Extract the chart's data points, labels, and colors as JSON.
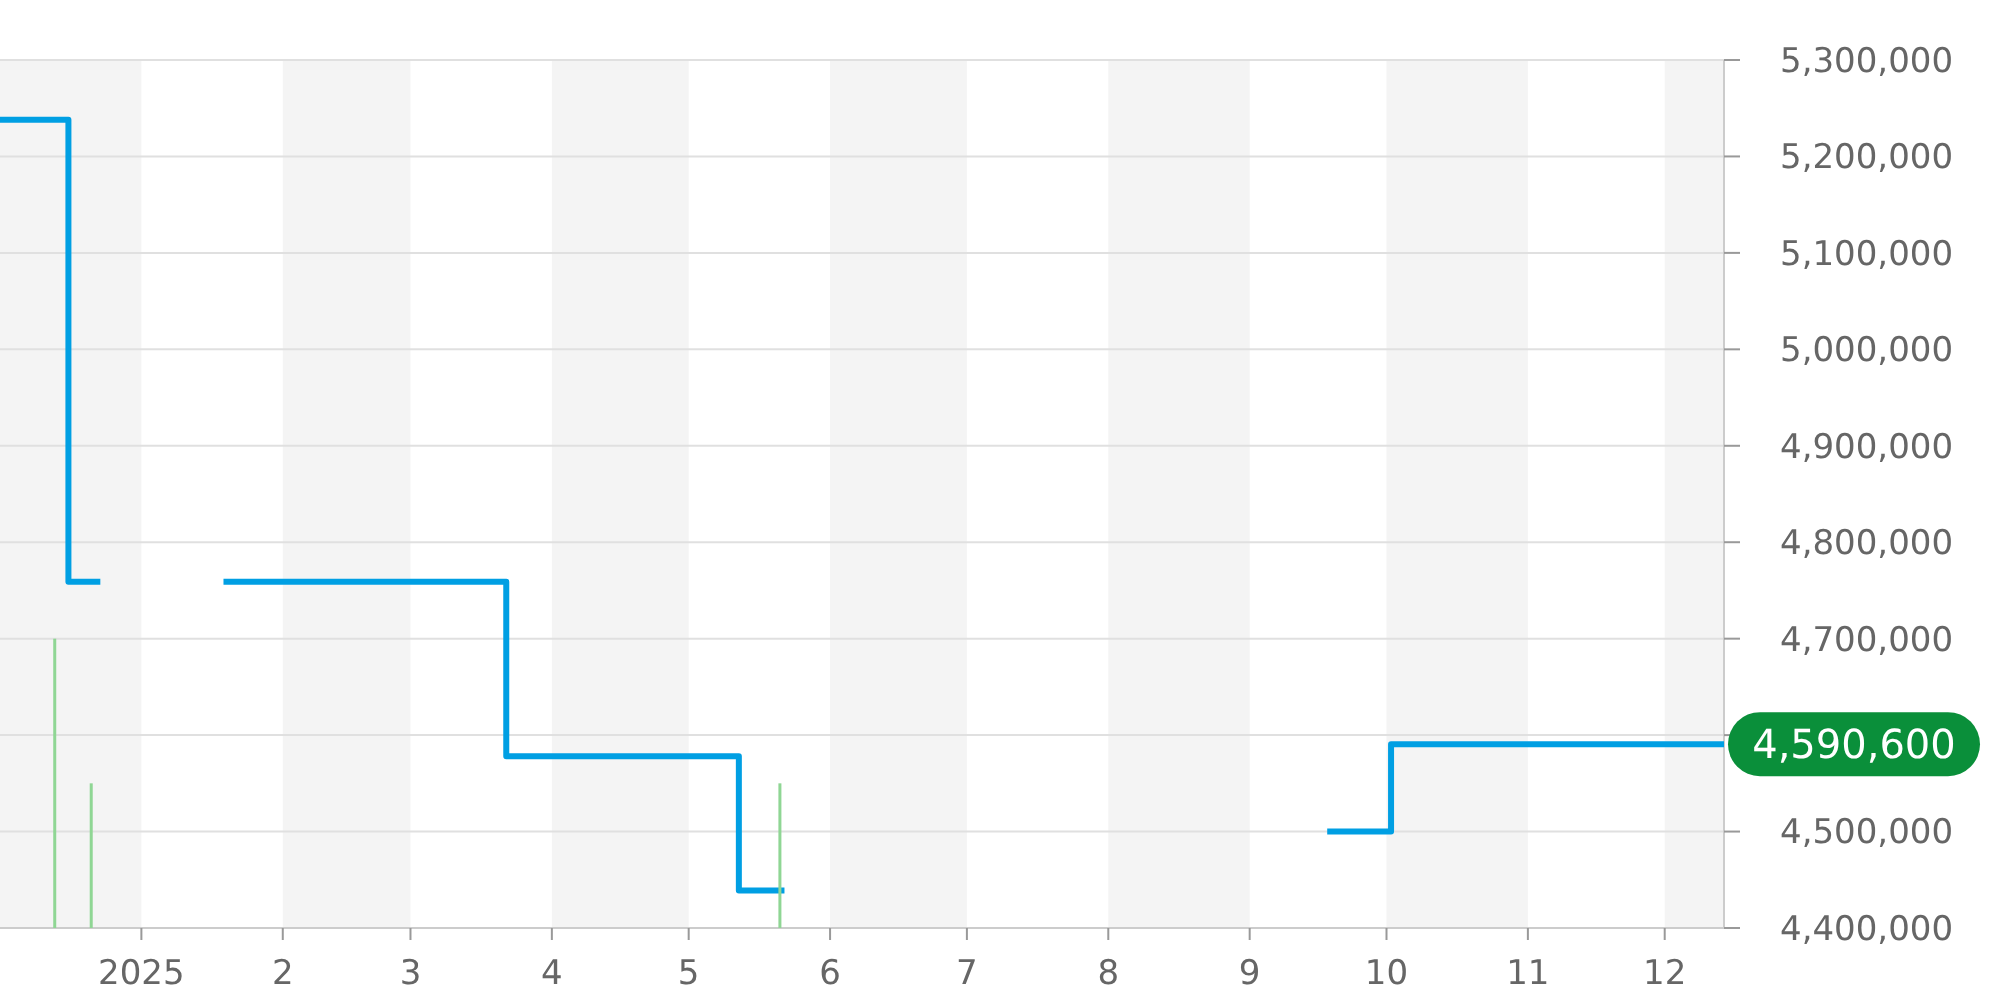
{
  "chart_data": {
    "type": "step",
    "xlim": [
      "2024-12-01",
      "2025-12-14"
    ],
    "xticks": [
      {
        "value": "2025-01-01",
        "label": "2025"
      },
      {
        "value": "2025-02-01",
        "label": "2"
      },
      {
        "value": "2025-03-01",
        "label": "3"
      },
      {
        "value": "2025-04-01",
        "label": "4"
      },
      {
        "value": "2025-05-01",
        "label": "5"
      },
      {
        "value": "2025-06-01",
        "label": "6"
      },
      {
        "value": "2025-07-01",
        "label": "7"
      },
      {
        "value": "2025-08-01",
        "label": "8"
      },
      {
        "value": "2025-09-01",
        "label": "9"
      },
      {
        "value": "2025-10-01",
        "label": "10"
      },
      {
        "value": "2025-11-01",
        "label": "11"
      },
      {
        "value": "2025-12-01",
        "label": "12"
      }
    ],
    "ylim": [
      4400000,
      5300000
    ],
    "yticks": [
      {
        "value": 4400000,
        "label": "4,400,000"
      },
      {
        "value": 4500000,
        "label": "4,500,000"
      },
      {
        "value": 4600000,
        "label": null
      },
      {
        "value": 4700000,
        "label": "4,700,000"
      },
      {
        "value": 4800000,
        "label": "4,800,000"
      },
      {
        "value": 4900000,
        "label": "4,900,000"
      },
      {
        "value": 5000000,
        "label": "5,000,000"
      },
      {
        "value": 5100000,
        "label": "5,100,000"
      },
      {
        "value": 5200000,
        "label": "5,200,000"
      },
      {
        "value": 5300000,
        "label": "5,300,000"
      }
    ],
    "grid": "y",
    "series": [
      {
        "color": "#009fe3",
        "x": [
          "2024-12-01",
          "2024-12-16",
          "2024-12-23",
          "2025-01-05",
          "2025-01-19",
          "2025-03-22",
          "2025-05-12",
          "2025-05-22",
          "2025-07-01",
          "2025-09-18",
          "2025-10-02",
          "2025-12-14"
        ],
        "values": [
          5238000,
          4759000,
          4759000,
          null,
          4759000,
          4578000,
          4439000,
          4439000,
          null,
          4500000,
          4590600,
          4590600
        ]
      },
      {
        "type": "bar",
        "color": "#8fd694",
        "x": [
          "2024-12-13",
          "2024-12-21",
          "2025-05-21"
        ],
        "values": [
          4700000,
          4550000,
          4550000
        ]
      }
    ],
    "bands": [
      {
        "axis": "x",
        "from": "2024-12-01",
        "to": "2025-01-01",
        "color": "#f4f4f4"
      },
      {
        "axis": "x",
        "from": "2025-02-01",
        "to": "2025-03-01",
        "color": "#f4f4f4"
      },
      {
        "axis": "x",
        "from": "2025-04-01",
        "to": "2025-05-01",
        "color": "#f4f4f4"
      },
      {
        "axis": "x",
        "from": "2025-06-01",
        "to": "2025-07-01",
        "color": "#f4f4f4"
      },
      {
        "axis": "x",
        "from": "2025-08-01",
        "to": "2025-09-01",
        "color": "#f4f4f4"
      },
      {
        "axis": "x",
        "from": "2025-10-01",
        "to": "2025-11-01",
        "color": "#f4f4f4"
      },
      {
        "axis": "x",
        "from": "2025-12-01",
        "to": "2025-12-14",
        "color": "#f4f4f4"
      }
    ],
    "annotations": [
      {
        "text": "4,590,600",
        "x": "2025-12-14",
        "y": 4590600
      }
    ]
  }
}
